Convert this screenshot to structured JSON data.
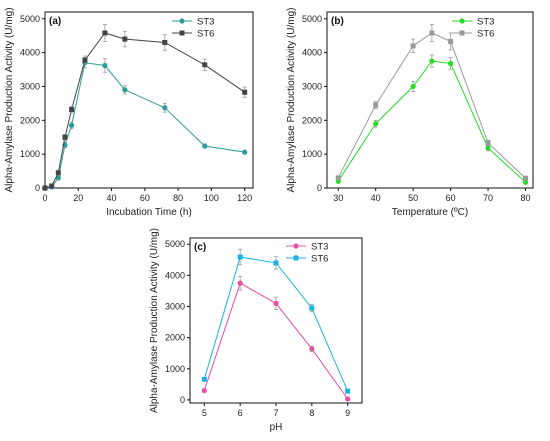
{
  "chart_data": [
    {
      "panel": "(a)",
      "type": "line",
      "xlabel": "Incubation Time (h)",
      "ylabel": "Alpha-Amylase Production Activity (U/mg)",
      "xlim": [
        0,
        125
      ],
      "ylim": [
        0,
        5200
      ],
      "xticks": [
        0,
        20,
        40,
        60,
        80,
        100,
        120
      ],
      "yticks": [
        0,
        1000,
        2000,
        3000,
        4000,
        5000
      ],
      "legend_position": "top-right",
      "series": [
        {
          "name": "ST3",
          "color": "#2a9d9a",
          "marker": "circle",
          "x": [
            0,
            4,
            8,
            12,
            16,
            24,
            36,
            48,
            72,
            96,
            120
          ],
          "y": [
            0,
            30,
            300,
            1270,
            1850,
            3700,
            3620,
            2900,
            2370,
            1240,
            1060
          ],
          "err": [
            20,
            30,
            60,
            80,
            100,
            150,
            200,
            120,
            130,
            60,
            40
          ]
        },
        {
          "name": "ST6",
          "color": "#444444",
          "marker": "square",
          "x": [
            0,
            4,
            8,
            12,
            16,
            24,
            36,
            48,
            72,
            96,
            120
          ],
          "y": [
            0,
            60,
            450,
            1500,
            2320,
            3780,
            4580,
            4400,
            4300,
            3640,
            2830
          ],
          "err": [
            20,
            30,
            60,
            80,
            100,
            120,
            250,
            230,
            230,
            170,
            150
          ]
        }
      ]
    },
    {
      "panel": "(b)",
      "type": "line",
      "xlabel": "Temperature (ºC)",
      "ylabel": "Alpha-Amylase Production Activity (U/mg)",
      "xlim": [
        27,
        82
      ],
      "ylim": [
        0,
        5200
      ],
      "xticks": [
        30,
        40,
        50,
        60,
        70,
        80
      ],
      "yticks": [
        0,
        1000,
        2000,
        3000,
        4000,
        5000
      ],
      "legend_position": "top-right",
      "series": [
        {
          "name": "ST3",
          "color": "#22dd22",
          "marker": "circle",
          "x": [
            30,
            40,
            50,
            55,
            60,
            70,
            80
          ],
          "y": [
            200,
            1900,
            3000,
            3750,
            3680,
            1180,
            170
          ],
          "err": [
            40,
            100,
            150,
            180,
            170,
            80,
            40
          ]
        },
        {
          "name": "ST6",
          "color": "#9a9a9a",
          "marker": "square",
          "x": [
            30,
            40,
            50,
            55,
            60,
            70,
            80
          ],
          "y": [
            300,
            2450,
            4200,
            4580,
            4330,
            1330,
            290
          ],
          "err": [
            40,
            100,
            200,
            250,
            250,
            80,
            40
          ]
        }
      ]
    },
    {
      "panel": "(c)",
      "type": "line",
      "xlabel": "pH",
      "ylabel": "Alpha-Amylase Production Activity (U/mg)",
      "xlim": [
        4.6,
        9.4
      ],
      "ylim": [
        -100,
        5200
      ],
      "xticks": [
        5,
        6,
        7,
        8,
        9
      ],
      "yticks": [
        0,
        1000,
        2000,
        3000,
        4000,
        5000
      ],
      "legend_position": "top-right",
      "series": [
        {
          "name": "ST3",
          "color": "#e84ca3",
          "marker": "circle",
          "x": [
            5,
            6,
            7,
            8,
            9
          ],
          "y": [
            300,
            3750,
            3100,
            1640,
            30
          ],
          "err": [
            40,
            220,
            200,
            80,
            40
          ]
        },
        {
          "name": "ST6",
          "color": "#1cb2e8",
          "marker": "square",
          "x": [
            5,
            6,
            7,
            8,
            9
          ],
          "y": [
            660,
            4590,
            4400,
            2950,
            280
          ],
          "err": [
            40,
            250,
            200,
            120,
            40
          ]
        }
      ]
    }
  ]
}
